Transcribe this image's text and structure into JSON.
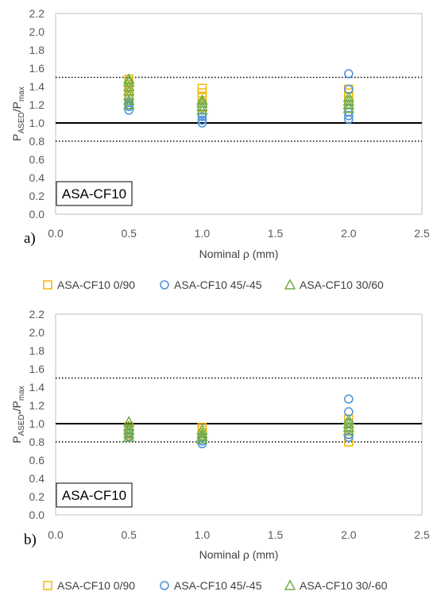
{
  "chart_data": [
    {
      "type": "scatter",
      "panel_label": "a)",
      "box_label": "ASA-CF10",
      "xlabel": "Nominal ρ (mm)",
      "ylabel": {
        "P": "P",
        "sub1": "ASED",
        "mid": "/P",
        "sub2": "max"
      },
      "xlim": [
        0.0,
        2.5
      ],
      "ylim": [
        0.0,
        2.2
      ],
      "x_ticks": [
        "0.0",
        "0.5",
        "1.0",
        "1.5",
        "2.0",
        "2.5"
      ],
      "y_ticks": [
        "0.0",
        "0.2",
        "0.4",
        "0.6",
        "0.8",
        "1.0",
        "1.2",
        "1.4",
        "1.6",
        "1.8",
        "2.0",
        "2.2"
      ],
      "reference_lines": {
        "solid": 1.0,
        "dotted": [
          0.8,
          1.5
        ]
      },
      "grid": false,
      "legend_position": "bottom",
      "series": [
        {
          "name": "ASA-CF10 0/90",
          "marker": "square",
          "color": "#F2B705",
          "points": [
            [
              0.5,
              1.48
            ],
            [
              0.5,
              1.45
            ],
            [
              0.5,
              1.42
            ],
            [
              0.5,
              1.38
            ],
            [
              0.5,
              1.35
            ],
            [
              0.5,
              1.3
            ],
            [
              0.5,
              1.27
            ],
            [
              1.0,
              1.38
            ],
            [
              1.0,
              1.33
            ],
            [
              1.0,
              1.28
            ],
            [
              1.0,
              1.22
            ],
            [
              1.0,
              1.17
            ],
            [
              2.0,
              1.37
            ],
            [
              2.0,
              1.33
            ],
            [
              2.0,
              1.29
            ],
            [
              2.0,
              1.25
            ],
            [
              2.0,
              1.2
            ]
          ]
        },
        {
          "name": "ASA-CF10 45/-45",
          "marker": "circle",
          "color": "#4A90D9",
          "points": [
            [
              0.5,
              1.14
            ],
            [
              0.5,
              1.18
            ],
            [
              0.5,
              1.2
            ],
            [
              0.5,
              1.23
            ],
            [
              1.0,
              1.0
            ],
            [
              1.0,
              1.03
            ],
            [
              1.0,
              1.07
            ],
            [
              1.0,
              1.1
            ],
            [
              2.0,
              1.54
            ],
            [
              2.0,
              1.37
            ],
            [
              2.0,
              1.16
            ],
            [
              2.0,
              1.12
            ],
            [
              2.0,
              1.08
            ],
            [
              2.0,
              1.04
            ]
          ]
        },
        {
          "name": "ASA-CF10 30/60",
          "marker": "triangle",
          "color": "#70AD47",
          "points": [
            [
              0.5,
              1.48
            ],
            [
              0.5,
              1.45
            ],
            [
              0.5,
              1.4
            ],
            [
              0.5,
              1.35
            ],
            [
              0.5,
              1.3
            ],
            [
              0.5,
              1.25
            ],
            [
              0.5,
              1.2
            ],
            [
              1.0,
              1.25
            ],
            [
              1.0,
              1.22
            ],
            [
              1.0,
              1.18
            ],
            [
              1.0,
              1.14
            ],
            [
              2.0,
              1.28
            ],
            [
              2.0,
              1.24
            ],
            [
              2.0,
              1.2
            ],
            [
              2.0,
              1.16
            ]
          ]
        }
      ]
    },
    {
      "type": "scatter",
      "panel_label": "b)",
      "box_label": "ASA-CF10",
      "xlabel": "Nominal ρ (mm)",
      "ylabel": {
        "P": "P",
        "sub1": "ASED*",
        "mid": "/P",
        "sub2": "max"
      },
      "xlim": [
        0.0,
        2.5
      ],
      "ylim": [
        0.0,
        2.2
      ],
      "x_ticks": [
        "0.0",
        "0.5",
        "1.0",
        "1.5",
        "2.0",
        "2.5"
      ],
      "y_ticks": [
        "0.0",
        "0.2",
        "0.4",
        "0.6",
        "0.8",
        "1.0",
        "1.2",
        "1.4",
        "1.6",
        "1.8",
        "2.0",
        "2.2"
      ],
      "reference_lines": {
        "solid": 1.0,
        "dotted": [
          0.8,
          1.5
        ]
      },
      "grid": false,
      "legend_position": "bottom",
      "series": [
        {
          "name": "ASA-CF10 0/90",
          "marker": "square",
          "color": "#F2B705",
          "points": [
            [
              0.5,
              0.97
            ],
            [
              0.5,
              0.94
            ],
            [
              0.5,
              0.91
            ],
            [
              0.5,
              0.88
            ],
            [
              0.5,
              0.85
            ],
            [
              1.0,
              0.96
            ],
            [
              1.0,
              0.93
            ],
            [
              1.0,
              0.9
            ],
            [
              1.0,
              0.87
            ],
            [
              2.0,
              1.05
            ],
            [
              2.0,
              1.0
            ],
            [
              2.0,
              0.95
            ],
            [
              2.0,
              0.8
            ]
          ]
        },
        {
          "name": "ASA-CF10 45/-45",
          "marker": "circle",
          "color": "#4A90D9",
          "points": [
            [
              0.5,
              0.86
            ],
            [
              0.5,
              0.9
            ],
            [
              0.5,
              0.93
            ],
            [
              1.0,
              0.78
            ],
            [
              1.0,
              0.81
            ],
            [
              1.0,
              0.85
            ],
            [
              2.0,
              1.27
            ],
            [
              2.0,
              1.13
            ],
            [
              2.0,
              1.01
            ],
            [
              2.0,
              0.88
            ],
            [
              2.0,
              0.85
            ]
          ]
        },
        {
          "name": "ASA-CF10 30/-60",
          "marker": "triangle",
          "color": "#70AD47",
          "points": [
            [
              0.5,
              1.02
            ],
            [
              0.5,
              0.97
            ],
            [
              0.5,
              0.93
            ],
            [
              0.5,
              0.89
            ],
            [
              0.5,
              0.85
            ],
            [
              1.0,
              0.93
            ],
            [
              1.0,
              0.89
            ],
            [
              1.0,
              0.86
            ],
            [
              1.0,
              0.83
            ],
            [
              2.0,
              1.04
            ],
            [
              2.0,
              1.0
            ],
            [
              2.0,
              0.96
            ],
            [
              2.0,
              0.92
            ]
          ]
        }
      ]
    }
  ]
}
